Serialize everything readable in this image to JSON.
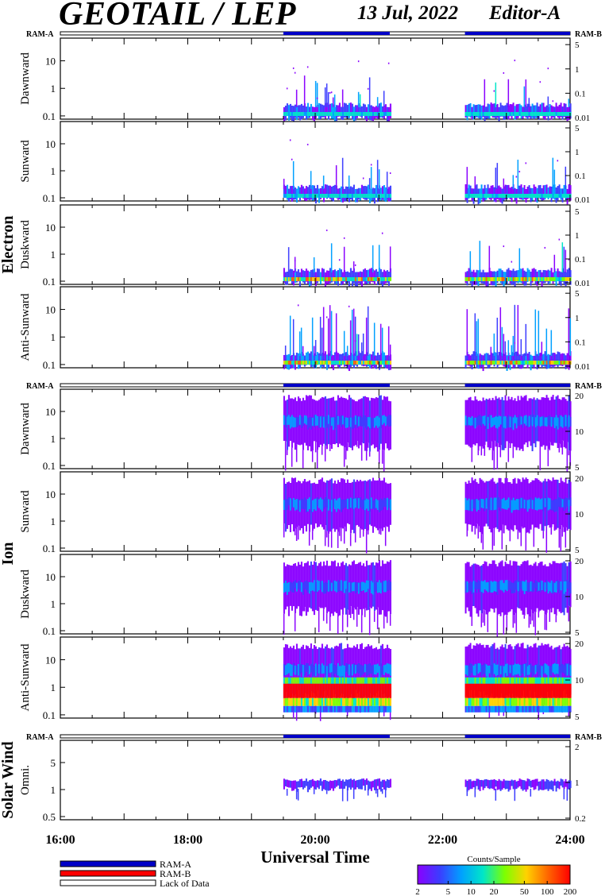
{
  "header": {
    "title": "GEOTAIL / LEP",
    "date": "13 Jul, 2022",
    "editor": "Editor-A"
  },
  "ram_labels": {
    "left": "RAM-A",
    "right": "RAM-B"
  },
  "groups": [
    {
      "name": "Electron"
    },
    {
      "name": "Ion"
    },
    {
      "name": "Solar Wind"
    }
  ],
  "x_axis": {
    "label": "Universal Time",
    "ticks": [
      "16:00",
      "18:00",
      "20:00",
      "22:00",
      "24:00"
    ]
  },
  "legend": {
    "items": [
      {
        "label": "RAM-A",
        "color": "#0000c8"
      },
      {
        "label": "RAM-B",
        "color": "#ff0000"
      },
      {
        "label": "Lack of Data",
        "color": "#ffffff"
      }
    ]
  },
  "colorbar": {
    "title": "Counts/Sample",
    "ticks": [
      "2",
      "5",
      "10",
      "20",
      "50",
      "100",
      "200"
    ]
  },
  "chart_data": {
    "type": "heatmap",
    "x_range_hours": [
      16,
      24
    ],
    "data_intervals": [
      [
        19.5,
        21.17
      ],
      [
        22.35,
        24.0
      ]
    ],
    "ram_a_intervals": [
      [
        19.5,
        21.17
      ],
      [
        22.35,
        24.0
      ]
    ],
    "panels": [
      {
        "group": "Electron",
        "ylabel": "Dawnward",
        "left_ticks": [
          "10",
          "1",
          "0.1"
        ],
        "right_ticks": [
          "5",
          "1",
          "0.1",
          "0.01"
        ]
      },
      {
        "group": "Electron",
        "ylabel": "Sunward",
        "left_ticks": [
          "10",
          "1",
          "0.1"
        ],
        "right_ticks": [
          "5",
          "1",
          "0.1",
          "0.01"
        ]
      },
      {
        "group": "Electron",
        "ylabel": "Duskward",
        "left_ticks": [
          "10",
          "1",
          "0.1"
        ],
        "right_ticks": [
          "5",
          "1",
          "0.1",
          "0.01"
        ]
      },
      {
        "group": "Electron",
        "ylabel": "Anti-Sunward",
        "left_ticks": [
          "10",
          "1",
          "0.1"
        ],
        "right_ticks": [
          "5",
          "1",
          "0.1",
          "0.01"
        ]
      },
      {
        "group": "Ion",
        "ylabel": "Dawnward",
        "left_ticks": [
          "10",
          "1",
          "0.1"
        ],
        "right_ticks": [
          "20",
          "10",
          "5"
        ]
      },
      {
        "group": "Ion",
        "ylabel": "Sunward",
        "left_ticks": [
          "10",
          "1",
          "0.1"
        ],
        "right_ticks": [
          "20",
          "10",
          "5"
        ]
      },
      {
        "group": "Ion",
        "ylabel": "Duskward",
        "left_ticks": [
          "10",
          "1",
          "0.1"
        ],
        "right_ticks": [
          "20",
          "10",
          "5"
        ]
      },
      {
        "group": "Ion",
        "ylabel": "Anti-Sunward",
        "left_ticks": [
          "10",
          "1",
          "0.1"
        ],
        "right_ticks": [
          "20",
          "10",
          "5"
        ]
      },
      {
        "group": "Solar Wind",
        "ylabel": "Omni.",
        "left_ticks": [
          "5",
          "1",
          "0.5"
        ],
        "right_ticks": [
          "2",
          "1",
          "0.2"
        ]
      }
    ]
  },
  "palette": {
    "ram_a": "#0000c8",
    "ram_b": "#ff0000",
    "scale": [
      "#8a00ff",
      "#3c3cff",
      "#00a0ff",
      "#00e6c8",
      "#7cff00",
      "#ffd200",
      "#ff6400",
      "#ff0000"
    ]
  }
}
